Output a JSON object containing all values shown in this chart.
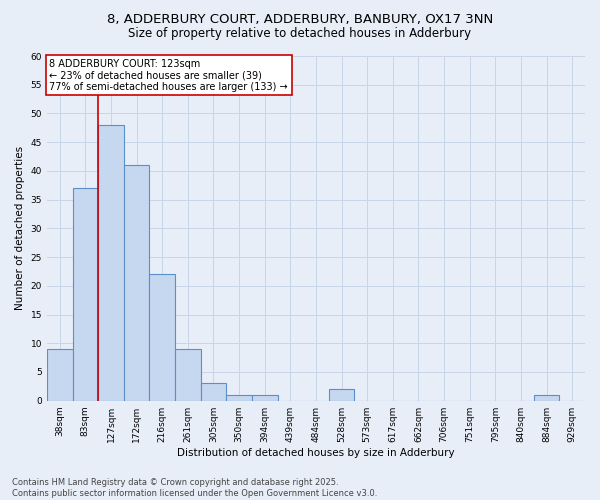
{
  "title_line1": "8, ADDERBURY COURT, ADDERBURY, BANBURY, OX17 3NN",
  "title_line2": "Size of property relative to detached houses in Adderbury",
  "xlabel": "Distribution of detached houses by size in Adderbury",
  "ylabel": "Number of detached properties",
  "bin_labels": [
    "38sqm",
    "83sqm",
    "127sqm",
    "172sqm",
    "216sqm",
    "261sqm",
    "305sqm",
    "350sqm",
    "394sqm",
    "439sqm",
    "484sqm",
    "528sqm",
    "573sqm",
    "617sqm",
    "662sqm",
    "706sqm",
    "751sqm",
    "795sqm",
    "840sqm",
    "884sqm",
    "929sqm"
  ],
  "bar_values": [
    9,
    37,
    48,
    41,
    22,
    9,
    3,
    1,
    1,
    0,
    0,
    2,
    0,
    0,
    0,
    0,
    0,
    0,
    0,
    1,
    0
  ],
  "bar_color": "#c5d8f0",
  "bar_edge_color": "#5b8fc9",
  "bar_edge_width": 0.8,
  "grid_color": "#c8d4e8",
  "bg_color": "#e8eef8",
  "redline_x": 1.5,
  "redline_color": "#cc0000",
  "annotation_text": "8 ADDERBURY COURT: 123sqm\n← 23% of detached houses are smaller (39)\n77% of semi-detached houses are larger (133) →",
  "annotation_box_color": "#ffffff",
  "annotation_box_edge": "#cc0000",
  "ylim": [
    0,
    60
  ],
  "yticks": [
    0,
    5,
    10,
    15,
    20,
    25,
    30,
    35,
    40,
    45,
    50,
    55,
    60
  ],
  "footnote": "Contains HM Land Registry data © Crown copyright and database right 2025.\nContains public sector information licensed under the Open Government Licence v3.0.",
  "title_fontsize": 9.5,
  "subtitle_fontsize": 8.5,
  "axis_label_fontsize": 7.5,
  "tick_fontsize": 6.5,
  "annotation_fontsize": 7,
  "footnote_fontsize": 6
}
